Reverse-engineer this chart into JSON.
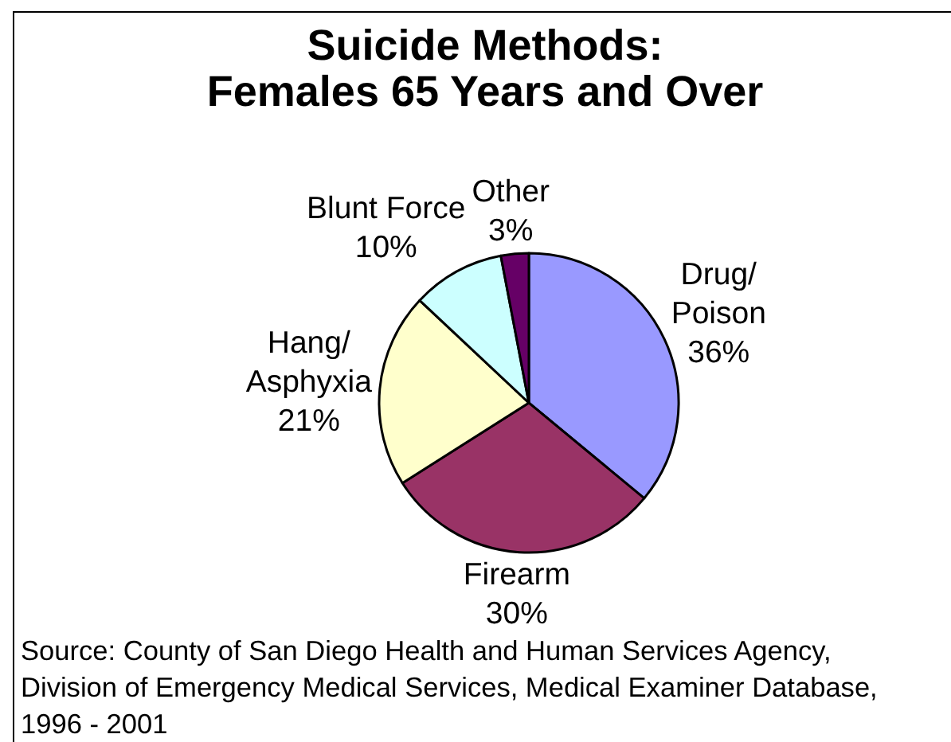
{
  "chart_data": {
    "type": "pie",
    "title": "Suicide Methods:\nFemales 65 Years and Over",
    "categories": [
      "Drug/Poison",
      "Firearm",
      "Hang/Asphyxia",
      "Blunt Force",
      "Other"
    ],
    "values": [
      36,
      30,
      21,
      10,
      3
    ],
    "colors": [
      "#9999ff",
      "#993366",
      "#ffffcc",
      "#ccffff",
      "#660066"
    ],
    "value_labels": [
      "36%",
      "30%",
      "21%",
      "10%",
      "3%"
    ],
    "annotations": [
      "Source: County of San Diego Health and Human Services Agency, Division of Emergency Medical Services, Medical Examiner Database, 1996 - 2001"
    ]
  }
}
